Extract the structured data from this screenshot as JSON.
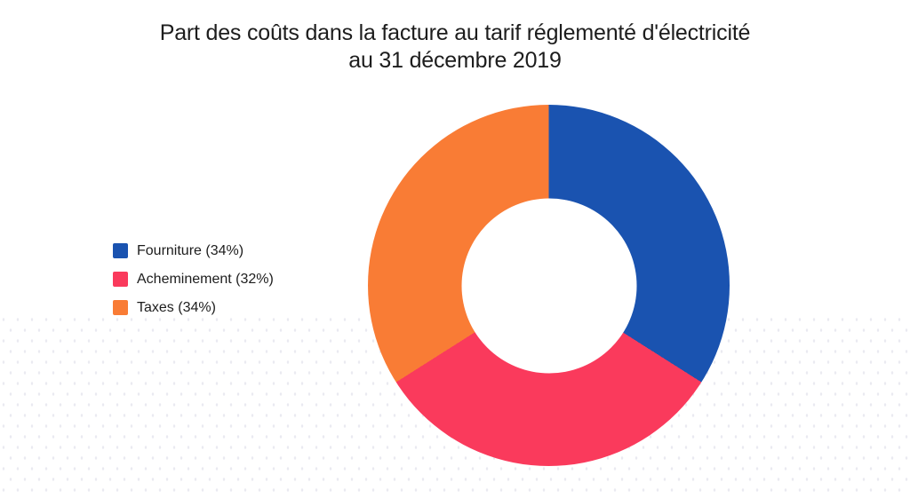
{
  "title": {
    "line1": "Part des coûts dans la facture au tarif réglementé d'électricité",
    "line2": "au 31 décembre 2019"
  },
  "chart_data": {
    "type": "pie",
    "variant": "donut",
    "title": "Part des coûts dans la facture au tarif réglementé d'électricité au 31 décembre 2019",
    "unit": "%",
    "categories": [
      "Fourniture",
      "Acheminement",
      "Taxes"
    ],
    "values": [
      34,
      32,
      34
    ],
    "slices": [
      {
        "label": "Fourniture",
        "value": 34,
        "color": "#1A53B0",
        "legend_label": "Fourniture (34%)"
      },
      {
        "label": "Acheminement",
        "value": 32,
        "color": "#FA3A5C",
        "legend_label": "Acheminement (32%)"
      },
      {
        "label": "Taxes",
        "value": 34,
        "color": "#F97C35",
        "legend_label": "Taxes (34%)"
      }
    ],
    "start_angle_deg": 0,
    "direction": "clockwise",
    "hole_ratio": 0.485,
    "legend_position": "left",
    "background_color": "#ffffff",
    "text_color": "#1d1d1d"
  }
}
